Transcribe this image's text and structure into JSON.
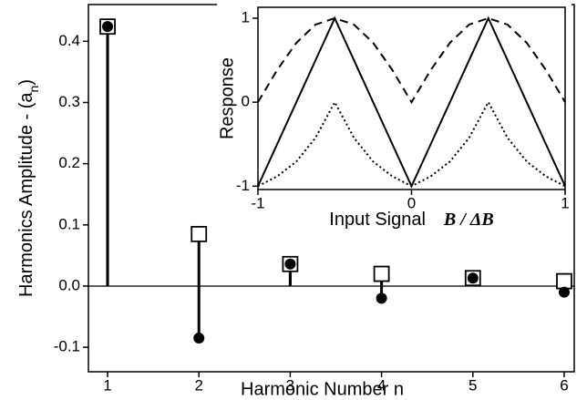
{
  "chart_data": [
    {
      "type": "stem",
      "xlabel": "Harmonic Number   n",
      "ylabel": [
        "Harmonics Amplitude  - (a",
        "n",
        ")"
      ],
      "x": [
        1,
        2,
        3,
        4,
        5,
        6
      ],
      "series": [
        {
          "marker": "square",
          "color": "#000000",
          "values": [
            0.424,
            0.085,
            0.036,
            0.02,
            0.013,
            0.008
          ]
        },
        {
          "marker": "circle",
          "color": "#000000",
          "values": [
            0.424,
            -0.085,
            0.036,
            -0.02,
            0.013,
            -0.01
          ]
        }
      ],
      "xlim": [
        0.79,
        6.11
      ],
      "xticks": [
        1,
        2,
        3,
        4,
        5,
        6
      ],
      "ylim": [
        -0.14,
        0.46
      ],
      "yticks": [
        -0.1,
        {
          "value": 0,
          "label": "0.0"
        },
        0.1,
        0.2,
        0.3,
        0.4
      ]
    },
    {
      "type": "line",
      "xlabel": [
        "Input Signal",
        "B / ΔB"
      ],
      "ylabel": "Response",
      "x": [
        -1,
        -0.875,
        -0.75,
        -0.625,
        -0.5,
        -0.375,
        -0.25,
        -0.125,
        0,
        0.125,
        0.25,
        0.375,
        0.5,
        0.625,
        0.75,
        0.875,
        1
      ],
      "series": [
        {
          "style": "dashed",
          "color": "#000000",
          "values": [
            0,
            0.383,
            0.707,
            0.924,
            1,
            0.924,
            0.707,
            0.383,
            0,
            0.383,
            0.707,
            0.924,
            1,
            0.924,
            0.707,
            0.383,
            0
          ]
        },
        {
          "style": "solid",
          "color": "#000000",
          "values": [
            -1,
            -0.5,
            0,
            0.5,
            1,
            0.5,
            0,
            -0.5,
            -1,
            -0.5,
            0,
            0.5,
            1,
            0.5,
            0,
            -0.5,
            -1
          ]
        },
        {
          "style": "dotted",
          "color": "#000000",
          "values": [
            -1,
            -0.883,
            -0.707,
            -0.424,
            0,
            -0.424,
            -0.707,
            -0.883,
            -1,
            -0.883,
            -0.707,
            -0.424,
            0,
            -0.424,
            -0.707,
            -0.883,
            -1
          ]
        }
      ],
      "xlim": [
        -1,
        1
      ],
      "xticks": [
        -1,
        0,
        1
      ],
      "ylim": [
        -1.04,
        1.13
      ],
      "yticks": [
        -1,
        0,
        1
      ]
    }
  ]
}
